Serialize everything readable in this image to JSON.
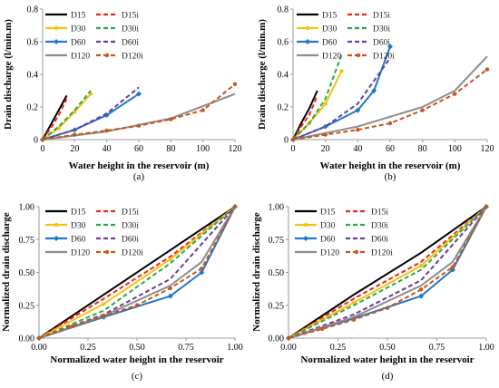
{
  "colors": {
    "D15": "#000000",
    "D15i": "#e8291c",
    "D30": "#f5c211",
    "D30i": "#2ea84a",
    "D60": "#1f78c8",
    "D60i": "#6a3d9a",
    "D120": "#8c8c8c",
    "D120i": "#c8561a"
  },
  "chart_data": [
    {
      "id": "a",
      "type": "line",
      "caption": "(a)",
      "xlabel": "Water height in the reservoir (m)",
      "ylabel": "Drain discharge (l/min.m)",
      "xlim": [
        0,
        120
      ],
      "ylim": [
        0,
        0.8
      ],
      "xticks": [
        "0",
        "20",
        "40",
        "60",
        "80",
        "100",
        "120"
      ],
      "yticks": [
        "0",
        "0.2",
        "0.4",
        "0.6",
        "0.8"
      ],
      "series": [
        {
          "name": "D15",
          "x": [
            0,
            5,
            10,
            15
          ],
          "y": [
            0,
            0.09,
            0.18,
            0.27
          ]
        },
        {
          "name": "D15i",
          "x": [
            0,
            5,
            10,
            15
          ],
          "y": [
            0,
            0.07,
            0.15,
            0.25
          ]
        },
        {
          "name": "D30",
          "x": [
            0,
            10,
            20,
            30
          ],
          "y": [
            0,
            0.07,
            0.17,
            0.28
          ]
        },
        {
          "name": "D30i",
          "x": [
            0,
            10,
            20,
            30
          ],
          "y": [
            0,
            0.08,
            0.18,
            0.3
          ]
        },
        {
          "name": "D60",
          "x": [
            0,
            20,
            40,
            60
          ],
          "y": [
            0,
            0.06,
            0.15,
            0.28
          ]
        },
        {
          "name": "D60i",
          "x": [
            0,
            20,
            40,
            60
          ],
          "y": [
            0,
            0.06,
            0.16,
            0.32
          ]
        },
        {
          "name": "D120",
          "x": [
            0,
            40,
            80,
            120
          ],
          "y": [
            0,
            0.05,
            0.13,
            0.28
          ]
        },
        {
          "name": "D120i",
          "x": [
            0,
            20,
            40,
            60,
            80,
            100,
            120
          ],
          "y": [
            0,
            0.03,
            0.055,
            0.085,
            0.125,
            0.18,
            0.34
          ]
        }
      ]
    },
    {
      "id": "b",
      "type": "line",
      "caption": "(b)",
      "xlabel": "Water height in the reservoir (m)",
      "ylabel": "Drain discharge (l/min.m)",
      "xlim": [
        0,
        120
      ],
      "ylim": [
        0,
        0.8
      ],
      "xticks": [
        "0",
        "20",
        "40",
        "60",
        "80",
        "100",
        "120"
      ],
      "yticks": [
        "0",
        "0.2",
        "0.4",
        "0.6",
        "0.8"
      ],
      "series": [
        {
          "name": "D15",
          "x": [
            0,
            5,
            10,
            15
          ],
          "y": [
            0,
            0.1,
            0.19,
            0.3
          ]
        },
        {
          "name": "D15i",
          "x": [
            0,
            5,
            10,
            15
          ],
          "y": [
            0,
            0.08,
            0.15,
            0.27
          ]
        },
        {
          "name": "D30",
          "x": [
            0,
            10,
            20,
            30
          ],
          "y": [
            0,
            0.1,
            0.22,
            0.42
          ]
        },
        {
          "name": "D30i",
          "x": [
            0,
            10,
            20,
            30
          ],
          "y": [
            0,
            0.1,
            0.25,
            0.52
          ]
        },
        {
          "name": "D60",
          "x": [
            0,
            20,
            40,
            50,
            60
          ],
          "y": [
            0,
            0.08,
            0.18,
            0.3,
            0.57
          ]
        },
        {
          "name": "D60i",
          "x": [
            0,
            20,
            40,
            60
          ],
          "y": [
            0,
            0.08,
            0.22,
            0.5
          ]
        },
        {
          "name": "D120",
          "x": [
            0,
            40,
            80,
            100,
            120
          ],
          "y": [
            0,
            0.08,
            0.2,
            0.3,
            0.51
          ]
        },
        {
          "name": "D120i",
          "x": [
            0,
            20,
            40,
            60,
            80,
            100,
            120
          ],
          "y": [
            0,
            0.03,
            0.06,
            0.1,
            0.18,
            0.28,
            0.43
          ]
        }
      ]
    },
    {
      "id": "c",
      "type": "line",
      "caption": "(c)",
      "xlabel": "Normalized water height in the reservoir",
      "ylabel": "Normalized drain discharge",
      "xlim": [
        0,
        1
      ],
      "ylim": [
        0,
        1
      ],
      "xticks": [
        "0.00",
        "0.25",
        "0.50",
        "0.75",
        "1.00"
      ],
      "yticks": [
        "0.00",
        "0.25",
        "0.50",
        "0.75",
        "1.00"
      ],
      "series": [
        {
          "name": "D15",
          "x": [
            0,
            0.33,
            0.67,
            1
          ],
          "y": [
            0,
            0.33,
            0.67,
            1
          ]
        },
        {
          "name": "D15i",
          "x": [
            0,
            0.33,
            0.67,
            1
          ],
          "y": [
            0,
            0.3,
            0.62,
            1
          ]
        },
        {
          "name": "D30",
          "x": [
            0,
            0.33,
            0.67,
            1
          ],
          "y": [
            0,
            0.26,
            0.6,
            1
          ]
        },
        {
          "name": "D30i",
          "x": [
            0,
            0.33,
            0.67,
            1
          ],
          "y": [
            0,
            0.21,
            0.57,
            1
          ]
        },
        {
          "name": "D60",
          "x": [
            0,
            0.33,
            0.67,
            0.83,
            1
          ],
          "y": [
            0,
            0.16,
            0.32,
            0.5,
            1
          ]
        },
        {
          "name": "D60i",
          "x": [
            0,
            0.33,
            0.67,
            1
          ],
          "y": [
            0,
            0.18,
            0.45,
            1
          ]
        },
        {
          "name": "D120",
          "x": [
            0,
            0.33,
            0.67,
            0.83,
            1
          ],
          "y": [
            0,
            0.17,
            0.4,
            0.58,
            1
          ]
        },
        {
          "name": "D120i",
          "x": [
            0,
            0.17,
            0.33,
            0.5,
            0.67,
            0.83,
            1
          ],
          "y": [
            0,
            0.09,
            0.17,
            0.25,
            0.38,
            0.53,
            1
          ]
        }
      ]
    },
    {
      "id": "d",
      "type": "line",
      "caption": "(d)",
      "xlabel": "Normalized water height in the reservoir",
      "ylabel": "Normalized drain discharge",
      "xlim": [
        0,
        1
      ],
      "ylim": [
        0,
        1
      ],
      "xticks": [
        "0.00",
        "0.25",
        "0.50",
        "0.75",
        "1.00"
      ],
      "yticks": [
        "0.00",
        "0.25",
        "0.50",
        "0.75",
        "1.00"
      ],
      "series": [
        {
          "name": "D15",
          "x": [
            0,
            0.33,
            0.67,
            1
          ],
          "y": [
            0,
            0.33,
            0.65,
            1
          ]
        },
        {
          "name": "D15i",
          "x": [
            0,
            0.33,
            0.67,
            1
          ],
          "y": [
            0,
            0.3,
            0.58,
            1
          ]
        },
        {
          "name": "D30",
          "x": [
            0,
            0.33,
            0.67,
            1
          ],
          "y": [
            0,
            0.27,
            0.55,
            1
          ]
        },
        {
          "name": "D30i",
          "x": [
            0,
            0.33,
            0.67,
            1
          ],
          "y": [
            0,
            0.25,
            0.52,
            1
          ]
        },
        {
          "name": "D60",
          "x": [
            0,
            0.33,
            0.67,
            0.83,
            1
          ],
          "y": [
            0,
            0.15,
            0.32,
            0.52,
            1
          ]
        },
        {
          "name": "D60i",
          "x": [
            0,
            0.33,
            0.67,
            1
          ],
          "y": [
            0,
            0.18,
            0.44,
            1
          ]
        },
        {
          "name": "D120",
          "x": [
            0,
            0.33,
            0.67,
            0.83,
            1
          ],
          "y": [
            0,
            0.16,
            0.4,
            0.58,
            1
          ]
        },
        {
          "name": "D120i",
          "x": [
            0,
            0.17,
            0.33,
            0.5,
            0.67,
            0.83,
            1
          ],
          "y": [
            0,
            0.07,
            0.14,
            0.23,
            0.37,
            0.54,
            1
          ]
        }
      ]
    }
  ]
}
